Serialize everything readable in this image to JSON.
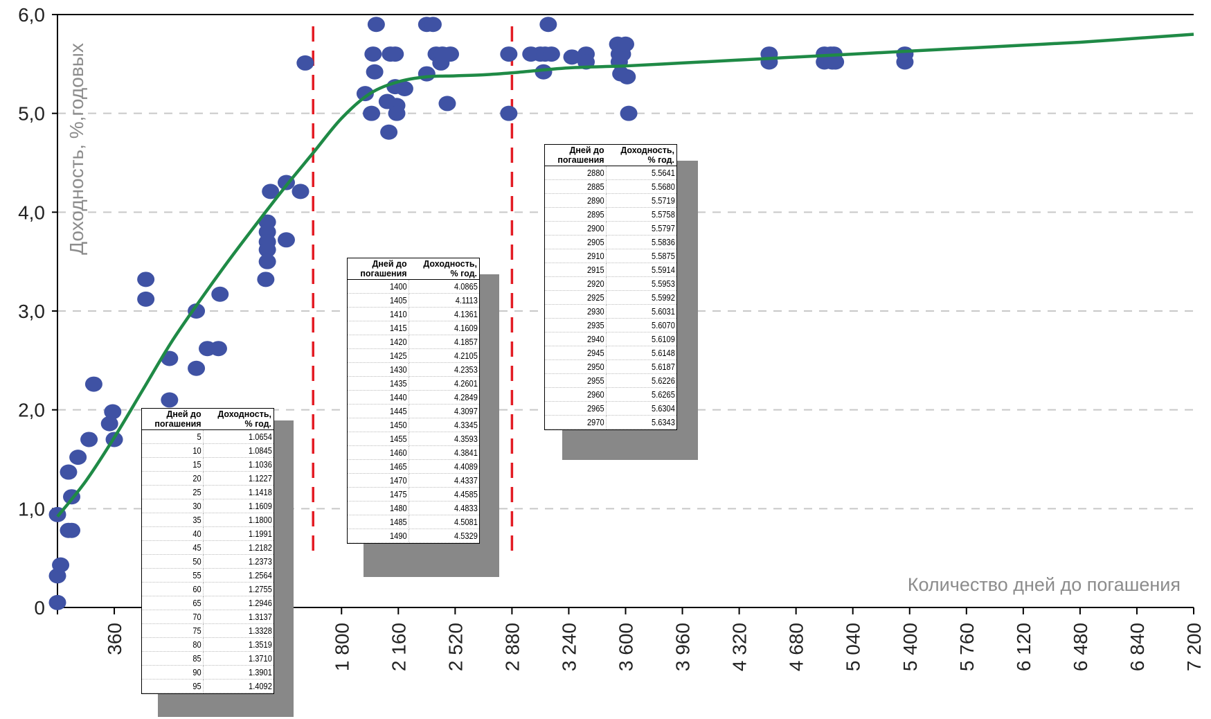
{
  "chart_data": {
    "type": "scatter",
    "ylabel": "Доходность, %,годовых",
    "xlabel": "Количество дней до погашения",
    "ylim": [
      0,
      6
    ],
    "xlim": [
      0,
      7200
    ],
    "y_ticks": [
      "0",
      "1,0",
      "2,0",
      "3,0",
      "4,0",
      "5,0",
      "6,0"
    ],
    "y_tick_values": [
      0,
      1,
      2,
      3,
      4,
      5,
      6
    ],
    "x_ticks": [
      "360",
      "1 800",
      "2 160",
      "2 520",
      "2 880",
      "3 240",
      "3 600",
      "3 960",
      "4 320",
      "4 680",
      "5 040",
      "5 400",
      "5 760",
      "6 120",
      "6 480",
      "6 840",
      "7 200"
    ],
    "x_tick_values": [
      360,
      1800,
      2160,
      2520,
      2880,
      3240,
      3600,
      3960,
      4320,
      4680,
      5040,
      5400,
      5760,
      6120,
      6480,
      6840,
      7200
    ],
    "grid": "horizontal dashed",
    "vlines_x": [
      1620,
      2880
    ],
    "colors": {
      "points": "#3f52a4",
      "curve": "#1f8a46",
      "vline": "#e31b23",
      "grid": "#c8c8c8",
      "axis_text": "#8c8c8c"
    },
    "series": [
      {
        "type": "scatter",
        "points": [
          [
            0,
            0.05
          ],
          [
            0,
            0.32
          ],
          [
            20,
            0.43
          ],
          [
            0,
            0.94
          ],
          [
            70,
            0.78
          ],
          [
            90,
            0.78
          ],
          [
            90,
            1.12
          ],
          [
            70,
            1.37
          ],
          [
            130,
            1.52
          ],
          [
            200,
            1.7
          ],
          [
            230,
            2.26
          ],
          [
            330,
            1.86
          ],
          [
            350,
            1.98
          ],
          [
            360,
            1.7
          ],
          [
            560,
            3.32
          ],
          [
            560,
            3.12
          ],
          [
            710,
            2.52
          ],
          [
            710,
            2.1
          ],
          [
            880,
            3.0
          ],
          [
            880,
            2.42
          ],
          [
            950,
            2.62
          ],
          [
            1020,
            2.62
          ],
          [
            1030,
            3.17
          ],
          [
            1330,
            3.9
          ],
          [
            1330,
            3.8
          ],
          [
            1330,
            3.7
          ],
          [
            1330,
            3.62
          ],
          [
            1330,
            3.5
          ],
          [
            1320,
            3.32
          ],
          [
            1350,
            4.21
          ],
          [
            1450,
            4.3
          ],
          [
            1450,
            3.72
          ],
          [
            1540,
            4.21
          ],
          [
            1570,
            5.51
          ],
          [
            1950,
            5.2
          ],
          [
            1990,
            5.0
          ],
          [
            2000,
            5.6
          ],
          [
            2010,
            5.42
          ],
          [
            2020,
            5.9
          ],
          [
            2090,
            5.12
          ],
          [
            2100,
            4.81
          ],
          [
            2110,
            5.6
          ],
          [
            2140,
            5.6
          ],
          [
            2140,
            5.27
          ],
          [
            2150,
            5.08
          ],
          [
            2150,
            5.0
          ],
          [
            2200,
            5.25
          ],
          [
            2340,
            5.4
          ],
          [
            2340,
            5.9
          ],
          [
            2380,
            5.9
          ],
          [
            2400,
            5.6
          ],
          [
            2430,
            5.51
          ],
          [
            2440,
            5.6
          ],
          [
            2470,
            5.1
          ],
          [
            2490,
            5.6
          ],
          [
            2860,
            5.6
          ],
          [
            2860,
            5.0
          ],
          [
            3000,
            5.6
          ],
          [
            3060,
            5.6
          ],
          [
            3080,
            5.42
          ],
          [
            3090,
            5.6
          ],
          [
            3110,
            5.9
          ],
          [
            3130,
            5.6
          ],
          [
            3260,
            5.57
          ],
          [
            3350,
            5.6
          ],
          [
            3350,
            5.52
          ],
          [
            3550,
            5.7
          ],
          [
            3560,
            5.6
          ],
          [
            3560,
            5.52
          ],
          [
            3570,
            5.4
          ],
          [
            3580,
            5.6
          ],
          [
            3600,
            5.7
          ],
          [
            3610,
            5.37
          ],
          [
            3620,
            5.0
          ],
          [
            4510,
            5.6
          ],
          [
            4510,
            5.52
          ],
          [
            4860,
            5.6
          ],
          [
            4860,
            5.52
          ],
          [
            4900,
            5.6
          ],
          [
            4910,
            5.52
          ],
          [
            4920,
            5.6
          ],
          [
            4930,
            5.52
          ],
          [
            5370,
            5.6
          ],
          [
            5370,
            5.52
          ]
        ]
      },
      {
        "type": "line",
        "points": [
          [
            0,
            0.92
          ],
          [
            180,
            1.28
          ],
          [
            360,
            1.72
          ],
          [
            540,
            2.2
          ],
          [
            720,
            2.68
          ],
          [
            900,
            3.1
          ],
          [
            1080,
            3.5
          ],
          [
            1260,
            3.88
          ],
          [
            1440,
            4.25
          ],
          [
            1620,
            4.6
          ],
          [
            1800,
            4.95
          ],
          [
            1980,
            5.2
          ],
          [
            2160,
            5.32
          ],
          [
            2340,
            5.37
          ],
          [
            2520,
            5.38
          ],
          [
            2700,
            5.39
          ],
          [
            2880,
            5.41
          ],
          [
            3240,
            5.46
          ],
          [
            3600,
            5.48
          ],
          [
            3960,
            5.51
          ],
          [
            4320,
            5.54
          ],
          [
            4680,
            5.57
          ],
          [
            5040,
            5.6
          ],
          [
            5400,
            5.63
          ],
          [
            5760,
            5.66
          ],
          [
            6120,
            5.69
          ],
          [
            6480,
            5.72
          ],
          [
            6840,
            5.76
          ],
          [
            7200,
            5.8
          ]
        ]
      }
    ],
    "tables": [
      {
        "headers": [
          [
            "Дней до",
            "погашения"
          ],
          [
            "Доходность,",
            "% год."
          ]
        ],
        "rows": [
          [
            "5",
            "1.0654"
          ],
          [
            "10",
            "1.0845"
          ],
          [
            "15",
            "1.1036"
          ],
          [
            "20",
            "1.1227"
          ],
          [
            "25",
            "1.1418"
          ],
          [
            "30",
            "1.1609"
          ],
          [
            "35",
            "1.1800"
          ],
          [
            "40",
            "1.1991"
          ],
          [
            "45",
            "1.2182"
          ],
          [
            "50",
            "1.2373"
          ],
          [
            "55",
            "1.2564"
          ],
          [
            "60",
            "1.2755"
          ],
          [
            "65",
            "1.2946"
          ],
          [
            "70",
            "1.3137"
          ],
          [
            "75",
            "1.3328"
          ],
          [
            "80",
            "1.3519"
          ],
          [
            "85",
            "1.3710"
          ],
          [
            "90",
            "1.3901"
          ],
          [
            "95",
            "1.4092"
          ]
        ]
      },
      {
        "headers": [
          [
            "Дней до",
            "погашения"
          ],
          [
            "Доходность,",
            "% год."
          ]
        ],
        "rows": [
          [
            "1400",
            "4.0865"
          ],
          [
            "1405",
            "4.1113"
          ],
          [
            "1410",
            "4.1361"
          ],
          [
            "1415",
            "4.1609"
          ],
          [
            "1420",
            "4.1857"
          ],
          [
            "1425",
            "4.2105"
          ],
          [
            "1430",
            "4.2353"
          ],
          [
            "1435",
            "4.2601"
          ],
          [
            "1440",
            "4.2849"
          ],
          [
            "1445",
            "4.3097"
          ],
          [
            "1450",
            "4.3345"
          ],
          [
            "1455",
            "4.3593"
          ],
          [
            "1460",
            "4.3841"
          ],
          [
            "1465",
            "4.4089"
          ],
          [
            "1470",
            "4.4337"
          ],
          [
            "1475",
            "4.4585"
          ],
          [
            "1480",
            "4.4833"
          ],
          [
            "1485",
            "4.5081"
          ],
          [
            "1490",
            "4.5329"
          ]
        ]
      },
      {
        "headers": [
          [
            "Дней до",
            "погашения"
          ],
          [
            "Доходность,",
            "% год."
          ]
        ],
        "rows": [
          [
            "2880",
            "5.5641"
          ],
          [
            "2885",
            "5.5680"
          ],
          [
            "2890",
            "5.5719"
          ],
          [
            "2895",
            "5.5758"
          ],
          [
            "2900",
            "5.5797"
          ],
          [
            "2905",
            "5.5836"
          ],
          [
            "2910",
            "5.5875"
          ],
          [
            "2915",
            "5.5914"
          ],
          [
            "2920",
            "5.5953"
          ],
          [
            "2925",
            "5.5992"
          ],
          [
            "2930",
            "5.6031"
          ],
          [
            "2935",
            "5.6070"
          ],
          [
            "2940",
            "5.6109"
          ],
          [
            "2945",
            "5.6148"
          ],
          [
            "2950",
            "5.6187"
          ],
          [
            "2955",
            "5.6226"
          ],
          [
            "2960",
            "5.6265"
          ],
          [
            "2965",
            "5.6304"
          ],
          [
            "2970",
            "5.6343"
          ]
        ]
      }
    ]
  }
}
